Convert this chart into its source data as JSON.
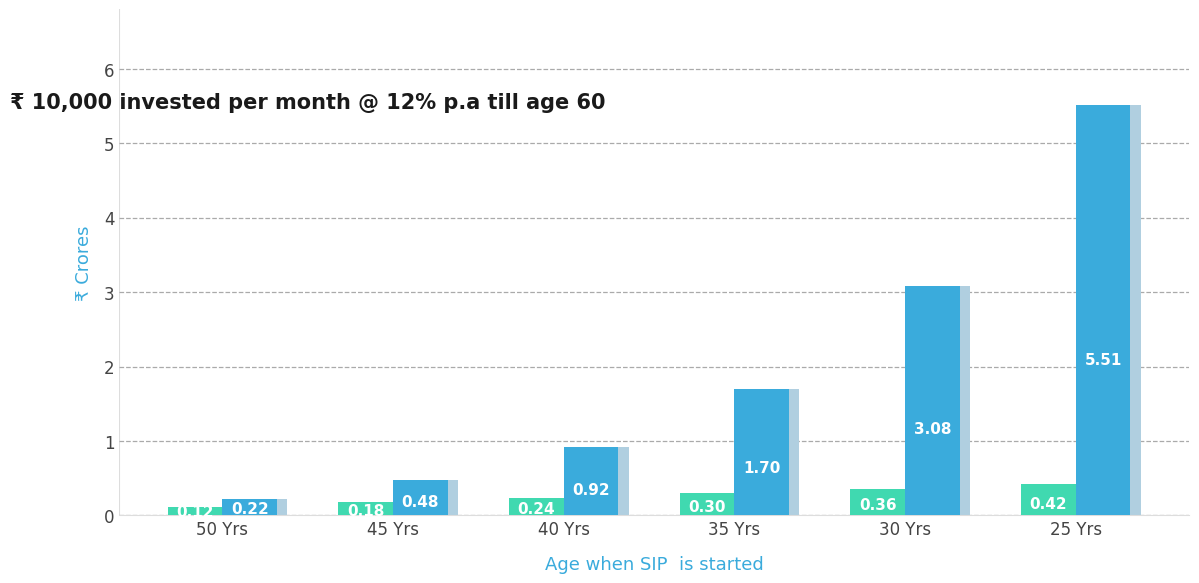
{
  "title": "₹ 10,000 invested per month @ 12% p.a till age 60",
  "xlabel": "Age when SIP  is started",
  "ylabel": "₹ Crores",
  "categories": [
    "50 Yrs",
    "45 Yrs",
    "40 Yrs",
    "35 Yrs",
    "30 Yrs",
    "25 Yrs"
  ],
  "investment_values": [
    0.12,
    0.18,
    0.24,
    0.3,
    0.36,
    0.42
  ],
  "returns_values": [
    0.22,
    0.48,
    0.92,
    1.7,
    3.08,
    5.51
  ],
  "investment_color": "#40D9B0",
  "returns_color": "#3AABDC",
  "ylim": [
    0,
    6.8
  ],
  "yticks": [
    0,
    1,
    2,
    3,
    4,
    5,
    6
  ],
  "background_color": "#ffffff",
  "bar_width": 0.32,
  "title_fontsize": 15,
  "axis_label_fontsize": 13,
  "tick_fontsize": 12,
  "value_fontsize": 11,
  "ylabel_color": "#3AABDC",
  "xlabel_color": "#3AABDC",
  "title_color": "#1a1a1a",
  "grid_color": "#aaaaaa",
  "shadow_color": "#b0cfe0"
}
